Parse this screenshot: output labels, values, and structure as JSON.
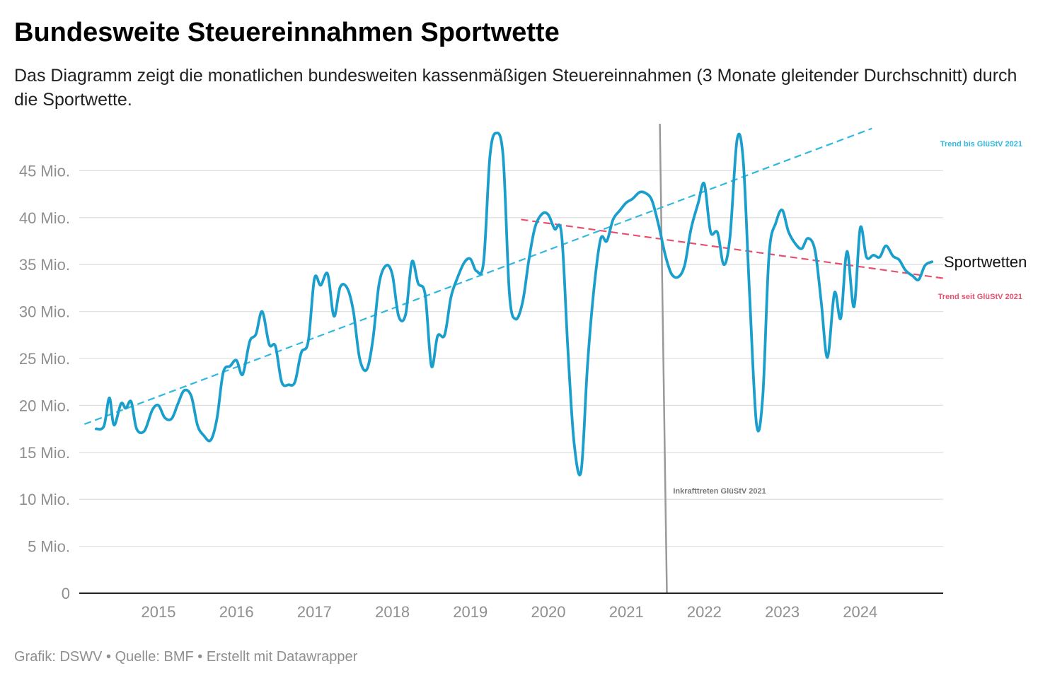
{
  "header": {
    "title": "Bundesweite Steuereinnahmen Sportwette",
    "subtitle": "Das Diagramm zeigt die monatlichen bundesweiten kassenmäßigen Steuereinnahmen (3 Monate gleitender Durchschnitt) durch die Sportwette."
  },
  "footer": {
    "text": "Grafik: DSWV • Quelle: BMF • Erstellt mit Datawrapper"
  },
  "colors": {
    "line": "#1a9fcc",
    "trend_before": "#30b8e0",
    "trend_after": "#e8506e",
    "event_line": "#999999",
    "grid": "#e0e0e0",
    "axis": "#222222"
  },
  "chart_data": {
    "type": "line",
    "title": "Bundesweite Steuereinnahmen Sportwette",
    "xlabel": "",
    "ylabel": "",
    "xlim": [
      2014.1,
      2025.0
    ],
    "ylim": [
      0,
      50
    ],
    "y_ticks": [
      {
        "value": 0,
        "label": "0"
      },
      {
        "value": 5,
        "label": "5 Mio."
      },
      {
        "value": 10,
        "label": "10 Mio."
      },
      {
        "value": 15,
        "label": "15 Mio."
      },
      {
        "value": 20,
        "label": "20 Mio."
      },
      {
        "value": 25,
        "label": "25 Mio."
      },
      {
        "value": 30,
        "label": "30 Mio."
      },
      {
        "value": 35,
        "label": "35 Mio."
      },
      {
        "value": 40,
        "label": "40 Mio."
      },
      {
        "value": 45,
        "label": "45 Mio."
      }
    ],
    "x_ticks": [
      {
        "value": 2015,
        "label": "2015"
      },
      {
        "value": 2016,
        "label": "2016"
      },
      {
        "value": 2017,
        "label": "2017"
      },
      {
        "value": 2018,
        "label": "2018"
      },
      {
        "value": 2019,
        "label": "2019"
      },
      {
        "value": 2020,
        "label": "2020"
      },
      {
        "value": 2021,
        "label": "2021"
      },
      {
        "value": 2022,
        "label": "2022"
      },
      {
        "value": 2023,
        "label": "2023"
      },
      {
        "value": 2024,
        "label": "2024"
      }
    ],
    "series": [
      {
        "name": "Sportwetten",
        "label": "Sportwetten",
        "x": [
          2014.2,
          2014.3,
          2014.37,
          2014.43,
          2014.52,
          2014.58,
          2014.65,
          2014.72,
          2014.82,
          2014.92,
          2015.0,
          2015.08,
          2015.17,
          2015.25,
          2015.33,
          2015.42,
          2015.5,
          2015.58,
          2015.67,
          2015.75,
          2015.83,
          2015.92,
          2016.0,
          2016.08,
          2016.17,
          2016.25,
          2016.33,
          2016.42,
          2016.5,
          2016.58,
          2016.67,
          2016.75,
          2016.83,
          2016.92,
          2017.0,
          2017.08,
          2017.17,
          2017.25,
          2017.33,
          2017.42,
          2017.5,
          2017.58,
          2017.67,
          2017.75,
          2017.83,
          2017.92,
          2018.0,
          2018.08,
          2018.17,
          2018.25,
          2018.33,
          2018.42,
          2018.5,
          2018.58,
          2018.67,
          2018.75,
          2018.83,
          2018.92,
          2019.0,
          2019.08,
          2019.17,
          2019.25,
          2019.33,
          2019.42,
          2019.5,
          2019.58,
          2019.67,
          2019.75,
          2019.83,
          2019.92,
          2020.0,
          2020.08,
          2020.17,
          2020.25,
          2020.33,
          2020.42,
          2020.5,
          2020.58,
          2020.67,
          2020.75,
          2020.83,
          2020.92,
          2021.0,
          2021.08,
          2021.17,
          2021.25,
          2021.33,
          2021.42,
          2021.5,
          2021.58,
          2021.67,
          2021.75,
          2021.83,
          2021.92,
          2022.0,
          2022.08,
          2022.17,
          2022.25,
          2022.33,
          2022.42,
          2022.5,
          2022.58,
          2022.67,
          2022.75,
          2022.83,
          2022.92,
          2023.0,
          2023.08,
          2023.17,
          2023.25,
          2023.33,
          2023.42,
          2023.5,
          2023.58,
          2023.67,
          2023.75,
          2023.83,
          2023.92,
          2024.0,
          2024.08,
          2024.17,
          2024.25,
          2024.33,
          2024.42,
          2024.5,
          2024.58,
          2024.67,
          2024.75,
          2024.83,
          2024.92
        ],
        "y": [
          17.5,
          17.8,
          20.8,
          17.9,
          20.2,
          19.7,
          20.4,
          17.5,
          17.3,
          19.5,
          20.0,
          18.7,
          18.6,
          20.2,
          21.6,
          21.0,
          17.9,
          16.8,
          16.3,
          18.6,
          23.5,
          24.2,
          24.8,
          23.3,
          26.8,
          27.6,
          30.0,
          26.5,
          26.3,
          22.5,
          22.2,
          22.5,
          25.6,
          26.8,
          33.5,
          32.8,
          34.0,
          29.5,
          32.6,
          32.5,
          30.0,
          25.0,
          23.8,
          27.0,
          33.0,
          34.9,
          33.9,
          29.5,
          29.7,
          35.3,
          33.0,
          31.8,
          24.2,
          27.4,
          27.5,
          31.5,
          33.5,
          35.2,
          35.6,
          34.3,
          35.3,
          46.5,
          49.0,
          46.5,
          32.0,
          29.2,
          31.0,
          35.5,
          39.0,
          40.4,
          40.3,
          38.8,
          38.2,
          26.0,
          16.0,
          13.0,
          24.0,
          32.0,
          37.7,
          37.5,
          39.8,
          40.8,
          41.6,
          42.0,
          42.7,
          42.6,
          41.8,
          39.0,
          36.0,
          34.0,
          33.7,
          35.0,
          38.8,
          41.5,
          43.6,
          38.5,
          38.4,
          35.0,
          38.0,
          48.3,
          46.0,
          32.0,
          18.0,
          21.0,
          36.0,
          39.5,
          40.8,
          38.5,
          37.2,
          36.7,
          37.8,
          36.5,
          31.0,
          25.1,
          32.0,
          29.3,
          36.4,
          30.5,
          38.9,
          35.8,
          36.0,
          35.8,
          37.0,
          35.9,
          35.5,
          34.4,
          33.8,
          33.4,
          34.9,
          35.3
        ]
      }
    ],
    "trend_lines": [
      {
        "name": "trend-before",
        "label": "Trend bis GlüStV 2021",
        "x": [
          2014.05,
          2024.15
        ],
        "y": [
          18.0,
          49.5
        ]
      },
      {
        "name": "trend-after",
        "label": "Trend seit GlüStV 2021",
        "x": [
          2019.65,
          2025.1
        ],
        "y": [
          39.8,
          33.5
        ]
      }
    ],
    "annotations": [
      {
        "name": "event-line",
        "label": "Inkrafttreten GlüStV 2021",
        "x": [
          2021.43,
          2021.52
        ],
        "y": [
          50.0,
          0
        ]
      }
    ],
    "legend": "end-of-line label"
  }
}
